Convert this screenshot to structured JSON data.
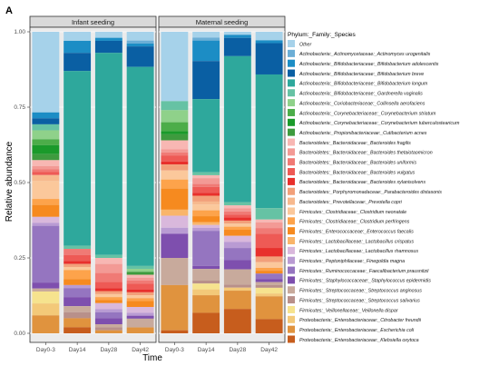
{
  "panel_label": "A",
  "chart_data": {
    "type": "bar",
    "stacked": true,
    "xlabel": "Time",
    "ylabel": "Relative abundance",
    "ylim": [
      0,
      1
    ],
    "yticks": [
      "0.00",
      "0.25",
      "0.50",
      "0.75",
      "1.00"
    ],
    "categories": [
      "Day0-3",
      "Day14",
      "Day28",
      "Day42"
    ],
    "legend_title": "Phylum:_Family:_Species",
    "legend_position": "right",
    "grid": true,
    "panel_background": "#ebebeb",
    "strip_background": "#d9d9d9",
    "series": [
      {
        "name": "Other",
        "color": "#a6d2ea"
      },
      {
        "name": "Actinobacteria:_Actinomycetaceae:_Actinomyces urogenitalis",
        "color": "#6baed6"
      },
      {
        "name": "Actinobacteria:_Bifidobacteriaceae:_Bifidobacterium adolescentis",
        "color": "#1c8dc5"
      },
      {
        "name": "Actinobacteria:_Bifidobacteriaceae:_Bifidobacterium breve",
        "color": "#0a5fa3"
      },
      {
        "name": "Actinobacteria:_Bifidobacteriaceae:_Bifidobacterium longum",
        "color": "#2ea89c"
      },
      {
        "name": "Actinobacteria:_Bifidobacteriaceae:_Gardnerella vaginalis",
        "color": "#66c2a4"
      },
      {
        "name": "Actinobacteria:_Coriobacteriaceae:_Collinsella aerofaciens",
        "color": "#8fd18a"
      },
      {
        "name": "Actinobacteria:_Corynebacteriaceae:_Corynebacterium striatum",
        "color": "#4cad49"
      },
      {
        "name": "Actinobacteria:_Corynebacteriaceae:_Corynebacterium tuberculostearicum",
        "color": "#1a9a2a"
      },
      {
        "name": "Actinobacteria:_Propionibacteriaceae:_Cutibacterium acnes",
        "color": "#3e9b3e"
      },
      {
        "name": "Bacteroidetes:_Bacteroidaceae:_Bacteroides fragilis",
        "color": "#f8b7b3"
      },
      {
        "name": "Bacteroidetes:_Bacteroidaceae:_Bacteroides thetaiotaomicron",
        "color": "#f39a95"
      },
      {
        "name": "Bacteroidetes:_Bacteroidaceae:_Bacteroides uniformis",
        "color": "#f07a75"
      },
      {
        "name": "Bacteroidetes:_Bacteroidaceae:_Bacteroides vulgatus",
        "color": "#ee5a55"
      },
      {
        "name": "Bacteroidetes:_Bacteroidaceae:_Bacteroides xylanisolvens",
        "color": "#e8302c"
      },
      {
        "name": "Bacteroidetes:_Porphyromonadaceae:_Parabacteroides distasonis",
        "color": "#f2a07a"
      },
      {
        "name": "Bacteroidetes:_Prevotellaceae:_Prevotella copri",
        "color": "#f7b98e"
      },
      {
        "name": "Firmicutes:_Clostridiaceae:_Clostridium neonatale",
        "color": "#fbc89b"
      },
      {
        "name": "Firmicutes:_Clostridiaceae:_Clostridium perfringens",
        "color": "#fda34b"
      },
      {
        "name": "Firmicutes:_Enterococcaceae:_Enterococcus faecalis",
        "color": "#f68a1f"
      },
      {
        "name": "Firmicutes:_Lactobacillaceae:_Lactobacillus crispatus",
        "color": "#f9b56a"
      },
      {
        "name": "Firmicutes:_Lactobacillaceae:_Lactobacillus rhamnosus",
        "color": "#d9b8dc"
      },
      {
        "name": "Firmicutes:_Peptoniphilaceae:_Finegoldia magna",
        "color": "#b99bd3"
      },
      {
        "name": "Firmicutes:_Ruminococcaceae:_Faecalibacterium prausnitzii",
        "color": "#9575c0"
      },
      {
        "name": "Firmicutes:_Staphylococcaceae:_Staphylococcus epidermidis",
        "color": "#7e4fae"
      },
      {
        "name": "Firmicutes:_Streptococcaceae:_Streptococcus anginosus",
        "color": "#c8aa9c"
      },
      {
        "name": "Firmicutes:_Streptococcaceae:_Streptococcus salivarius",
        "color": "#b8908a"
      },
      {
        "name": "Firmicutes:_Veillonellaceae:_Veillonella dispar",
        "color": "#f6e38e"
      },
      {
        "name": "Proteobacteria:_Enterobacteriaceae:_Citrobacter freundii",
        "color": "#f3c979"
      },
      {
        "name": "Proteobacteria:_Enterobacteriaceae:_Escherichia coli",
        "color": "#e0933e"
      },
      {
        "name": "Proteobacteria:_Enterobacteriaceae:_Klebsiella oxytoca",
        "color": "#c75d1d"
      }
    ],
    "facets": [
      {
        "name": "Infant seeding",
        "bars": [
          {
            "category": "Day0-3",
            "values": [
              0.27,
              0.0,
              0.02,
              0.02,
              0.0,
              0.02,
              0.03,
              0.02,
              0.03,
              0.02,
              0.02,
              0.01,
              0.01,
              0.01,
              0.0,
              0.0,
              0.02,
              0.06,
              0.02,
              0.04,
              0.0,
              0.02,
              0.01,
              0.19,
              0.02,
              0.01,
              0.0,
              0.04,
              0.04,
              0.06,
              0.0
            ]
          },
          {
            "category": "Day14",
            "values": [
              0.03,
              0.0,
              0.04,
              0.06,
              0.58,
              0.01,
              0.0,
              0.0,
              0.0,
              0.0,
              0.0,
              0.0,
              0.02,
              0.02,
              0.01,
              0.01,
              0.0,
              0.01,
              0.03,
              0.02,
              0.0,
              0.0,
              0.01,
              0.03,
              0.03,
              0.02,
              0.02,
              0.0,
              0.0,
              0.03,
              0.02
            ]
          },
          {
            "category": "Day28",
            "values": [
              0.02,
              0.0,
              0.01,
              0.04,
              0.67,
              0.01,
              0.0,
              0.0,
              0.0,
              0.0,
              0.02,
              0.03,
              0.03,
              0.02,
              0.01,
              0.01,
              0.0,
              0.01,
              0.01,
              0.01,
              0.0,
              0.02,
              0.01,
              0.02,
              0.02,
              0.01,
              0.01,
              0.0,
              0.0,
              0.01,
              0.0
            ]
          },
          {
            "category": "Day42",
            "values": [
              0.03,
              0.01,
              0.01,
              0.07,
              0.68,
              0.01,
              0.01,
              0.0,
              0.0,
              0.01,
              0.01,
              0.01,
              0.01,
              0.02,
              0.01,
              0.01,
              0.0,
              0.01,
              0.01,
              0.02,
              0.0,
              0.02,
              0.01,
              0.0,
              0.01,
              0.03,
              0.0,
              0.0,
              0.0,
              0.02,
              0.0
            ]
          }
        ]
      },
      {
        "name": "Maternal seeding",
        "bars": [
          {
            "category": "Day0-3",
            "values": [
              0.23,
              0.0,
              0.0,
              0.0,
              0.0,
              0.03,
              0.04,
              0.03,
              0.01,
              0.02,
              0.03,
              0.01,
              0.01,
              0.02,
              0.01,
              0.02,
              0.0,
              0.03,
              0.03,
              0.07,
              0.02,
              0.04,
              0.02,
              0.0,
              0.08,
              0.09,
              0.0,
              0.0,
              0.0,
              0.15,
              0.01
            ]
          },
          {
            "category": "Day14",
            "values": [
              0.02,
              0.01,
              0.07,
              0.13,
              0.25,
              0.01,
              0.0,
              0.0,
              0.0,
              0.0,
              0.01,
              0.02,
              0.01,
              0.02,
              0.01,
              0.02,
              0.01,
              0.02,
              0.02,
              0.02,
              0.01,
              0.01,
              0.01,
              0.12,
              0.01,
              0.04,
              0.01,
              0.02,
              0.02,
              0.06,
              0.07
            ]
          },
          {
            "category": "Day28",
            "values": [
              0.01,
              0.0,
              0.01,
              0.06,
              0.48,
              0.01,
              0.0,
              0.0,
              0.0,
              0.0,
              0.01,
              0.01,
              0.01,
              0.01,
              0.01,
              0.01,
              0.0,
              0.01,
              0.01,
              0.02,
              0.0,
              0.02,
              0.02,
              0.04,
              0.03,
              0.05,
              0.01,
              0.0,
              0.01,
              0.06,
              0.08
            ]
          },
          {
            "category": "Day42",
            "values": [
              0.03,
              0.0,
              0.01,
              0.11,
              0.47,
              0.04,
              0.0,
              0.0,
              0.0,
              0.0,
              0.01,
              0.02,
              0.02,
              0.05,
              0.03,
              0.02,
              0.0,
              0.02,
              0.01,
              0.01,
              0.0,
              0.0,
              0.0,
              0.02,
              0.01,
              0.01,
              0.01,
              0.02,
              0.01,
              0.08,
              0.05
            ]
          }
        ]
      }
    ]
  }
}
